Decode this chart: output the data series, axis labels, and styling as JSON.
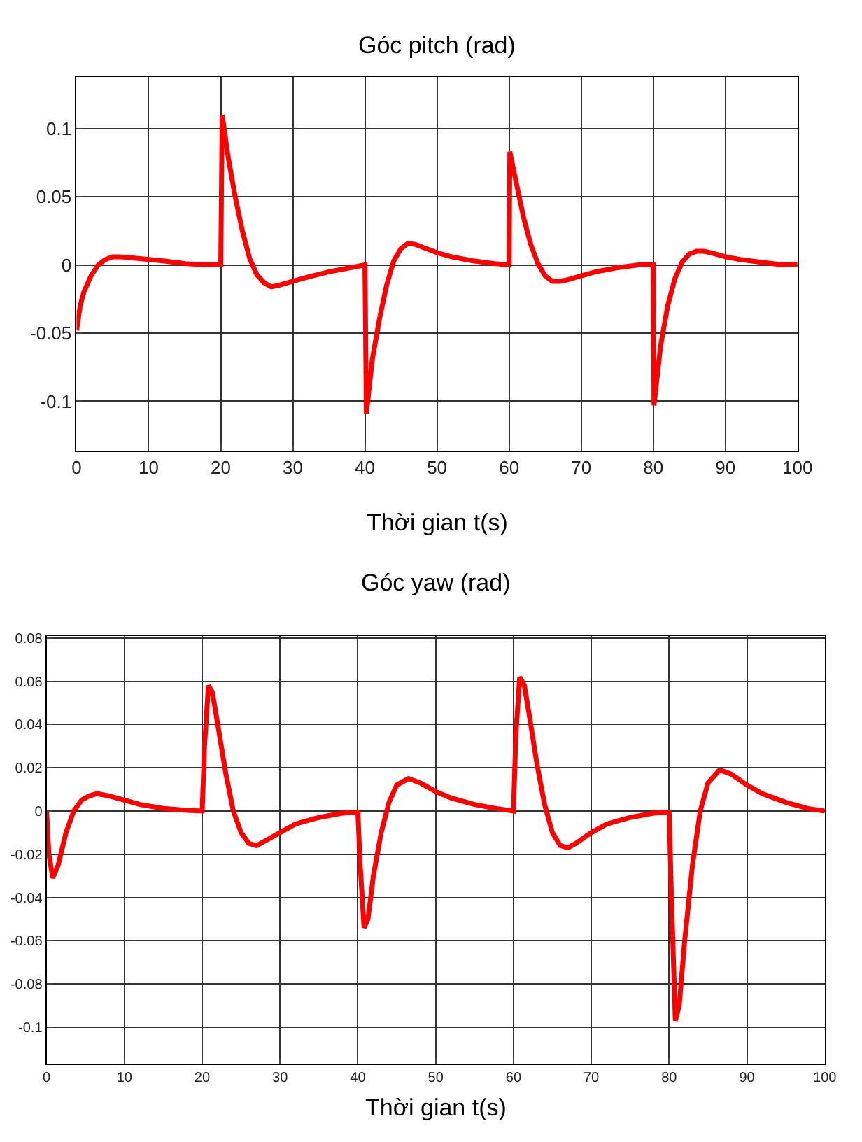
{
  "chart_data": [
    {
      "type": "line",
      "title": "Góc pitch (rad)",
      "xlabel": "Thời gian t(s)",
      "grid": true,
      "marker": "none",
      "line_style": "solid",
      "x": [
        0,
        0.5,
        1,
        2,
        3,
        4,
        5,
        6,
        8,
        10,
        12,
        15,
        18,
        20,
        20.2,
        21,
        22,
        23,
        24,
        25,
        26,
        27,
        28,
        30,
        32,
        35,
        38,
        40,
        40.2,
        41,
        42,
        43,
        44,
        45,
        46,
        47,
        48,
        50,
        52,
        55,
        58,
        60,
        60.1,
        61,
        62,
        63,
        64,
        65,
        66,
        67,
        68,
        70,
        72,
        75,
        78,
        80,
        80.1,
        81,
        82,
        83,
        84,
        85,
        86,
        87,
        88,
        90,
        92,
        95,
        98,
        100
      ],
      "series": [
        {
          "color": "#ff0000",
          "values": [
            -0.048,
            -0.03,
            -0.02,
            -0.008,
            0,
            0.004,
            0.006,
            0.006,
            0.005,
            0.004,
            0.003,
            0.001,
            0,
            0,
            0.11,
            0.08,
            0.05,
            0.025,
            0.005,
            -0.007,
            -0.013,
            -0.016,
            -0.015,
            -0.012,
            -0.009,
            -0.005,
            -0.002,
            0,
            -0.109,
            -0.07,
            -0.04,
            -0.015,
            0.003,
            0.012,
            0.016,
            0.015,
            0.013,
            0.009,
            0.006,
            0.003,
            0.001,
            0,
            0.083,
            0.06,
            0.035,
            0.015,
            0.001,
            -0.008,
            -0.012,
            -0.012,
            -0.011,
            -0.008,
            -0.005,
            -0.002,
            0,
            0,
            -0.103,
            -0.06,
            -0.03,
            -0.01,
            0.002,
            0.008,
            0.01,
            0.01,
            0.009,
            0.006,
            0.004,
            0.002,
            0,
            0
          ]
        }
      ],
      "xlim": [
        0,
        100
      ],
      "xticks": [
        0,
        10,
        20,
        30,
        40,
        50,
        60,
        70,
        80,
        90,
        100
      ],
      "ylim": [
        -0.136,
        0.138
      ],
      "yticks": [
        -0.1,
        -0.05,
        0,
        0.05,
        0.1
      ]
    },
    {
      "type": "line",
      "title": "Góc yaw (rad)",
      "xlabel": "Thời gian t(s)",
      "grid": true,
      "marker": "none",
      "line_style": "solid",
      "x": [
        0,
        0.3,
        0.8,
        1.5,
        2.5,
        3.5,
        4.5,
        5.5,
        6.5,
        8,
        10,
        12,
        15,
        18,
        20,
        20.3,
        20.8,
        21.3,
        22,
        23,
        24,
        25,
        26,
        27,
        28,
        30,
        32,
        35,
        38,
        40,
        40.3,
        40.8,
        41.3,
        42,
        43,
        44,
        45,
        46.5,
        48,
        50,
        52,
        55,
        58,
        60,
        60.3,
        60.8,
        61.4,
        62,
        63,
        64,
        65,
        66,
        67,
        68,
        70,
        72,
        75,
        78,
        80,
        80.3,
        80.8,
        81.3,
        82,
        83,
        84,
        85,
        86.5,
        88,
        90,
        92,
        95,
        98,
        100
      ],
      "series": [
        {
          "color": "#ff0000",
          "values": [
            0,
            -0.02,
            -0.031,
            -0.025,
            -0.01,
            0,
            0.005,
            0.007,
            0.008,
            0.007,
            0.005,
            0.003,
            0.0012,
            0.0003,
            0,
            0.03,
            0.058,
            0.055,
            0.04,
            0.018,
            0,
            -0.01,
            -0.015,
            -0.016,
            -0.014,
            -0.01,
            -0.006,
            -0.003,
            -0.001,
            -0.0005,
            -0.025,
            -0.054,
            -0.05,
            -0.03,
            -0.01,
            0.004,
            0.012,
            0.015,
            0.013,
            0.009,
            0.006,
            0.003,
            0.001,
            0,
            0.035,
            0.062,
            0.058,
            0.045,
            0.022,
            0.003,
            -0.01,
            -0.016,
            -0.017,
            -0.015,
            -0.01,
            -0.006,
            -0.003,
            -0.001,
            -0.0005,
            -0.04,
            -0.097,
            -0.09,
            -0.06,
            -0.025,
            0,
            0.013,
            0.019,
            0.017,
            0.012,
            0.008,
            0.004,
            0.001,
            0
          ]
        }
      ],
      "xlim": [
        0,
        100
      ],
      "xticks": [
        0,
        10,
        20,
        30,
        40,
        50,
        60,
        70,
        80,
        90,
        100
      ],
      "ylim": [
        -0.117,
        0.081
      ],
      "yticks": [
        -0.1,
        -0.08,
        -0.06,
        -0.04,
        -0.02,
        0,
        0.02,
        0.04,
        0.06,
        0.08
      ]
    }
  ]
}
